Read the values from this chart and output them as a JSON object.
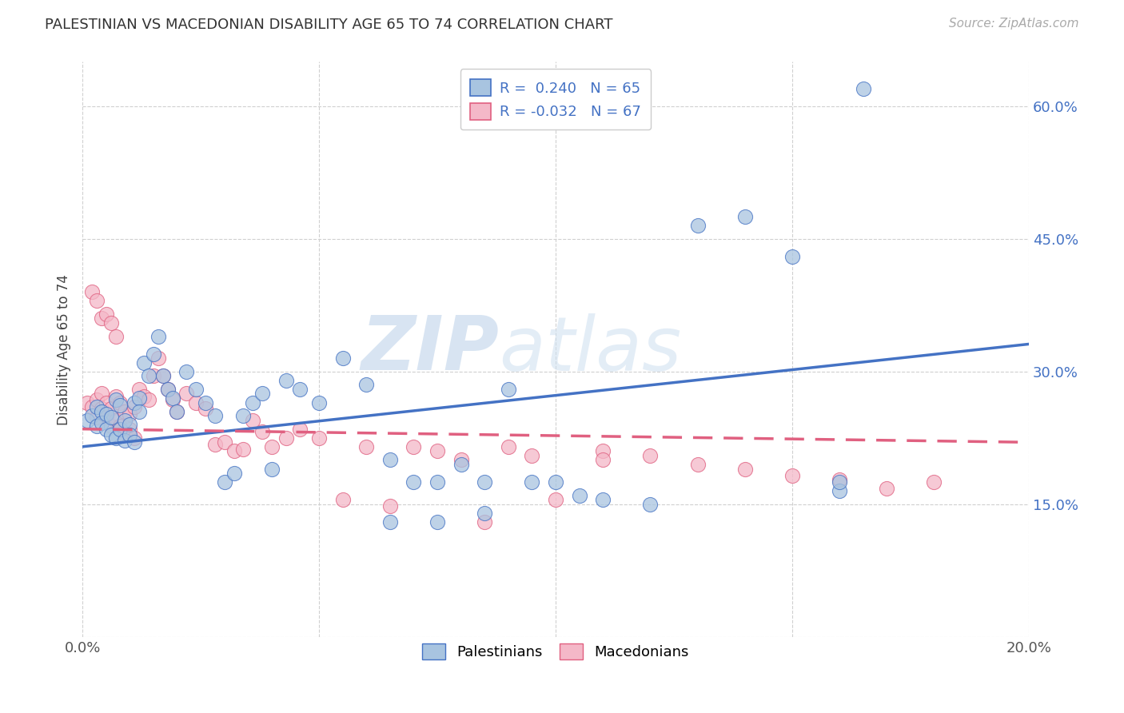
{
  "title": "PALESTINIAN VS MACEDONIAN DISABILITY AGE 65 TO 74 CORRELATION CHART",
  "source": "Source: ZipAtlas.com",
  "ylabel": "Disability Age 65 to 74",
  "xlim": [
    0.0,
    0.2
  ],
  "ylim": [
    0.0,
    0.65
  ],
  "xtick_positions": [
    0.0,
    0.05,
    0.1,
    0.15,
    0.2
  ],
  "xticklabels": [
    "0.0%",
    "",
    "",
    "",
    "20.0%"
  ],
  "ytick_positions": [
    0.0,
    0.15,
    0.3,
    0.45,
    0.6
  ],
  "yticklabels": [
    "",
    "15.0%",
    "30.0%",
    "45.0%",
    "60.0%"
  ],
  "palestinian_R": 0.24,
  "palestinian_N": 65,
  "macedonian_R": -0.032,
  "macedonian_N": 67,
  "pal_fill": "#a8c4e0",
  "pal_edge": "#4472c4",
  "mac_fill": "#f4b8c8",
  "mac_edge": "#e06080",
  "trendline_pal": "#4472c4",
  "trendline_mac": "#e06080",
  "grid_color": "#d0d0d0",
  "bg_color": "#ffffff",
  "watermark_zip": "ZIP",
  "watermark_atlas": "atlas",
  "title_fontsize": 13,
  "tick_fontsize": 13,
  "legend_fontsize": 13,
  "pal_x": [
    0.001,
    0.002,
    0.003,
    0.003,
    0.004,
    0.004,
    0.005,
    0.005,
    0.006,
    0.006,
    0.007,
    0.007,
    0.008,
    0.008,
    0.009,
    0.009,
    0.01,
    0.01,
    0.011,
    0.011,
    0.012,
    0.012,
    0.013,
    0.014,
    0.015,
    0.016,
    0.017,
    0.018,
    0.019,
    0.02,
    0.022,
    0.024,
    0.026,
    0.028,
    0.03,
    0.032,
    0.034,
    0.036,
    0.038,
    0.04,
    0.043,
    0.046,
    0.05,
    0.055,
    0.06,
    0.065,
    0.07,
    0.075,
    0.08,
    0.085,
    0.09,
    0.095,
    0.1,
    0.105,
    0.11,
    0.12,
    0.13,
    0.14,
    0.15,
    0.16,
    0.065,
    0.075,
    0.085,
    0.16,
    0.165
  ],
  "pal_y": [
    0.245,
    0.25,
    0.26,
    0.238,
    0.255,
    0.242,
    0.252,
    0.235,
    0.248,
    0.228,
    0.268,
    0.225,
    0.262,
    0.235,
    0.245,
    0.222,
    0.24,
    0.228,
    0.265,
    0.22,
    0.27,
    0.255,
    0.31,
    0.295,
    0.32,
    0.34,
    0.295,
    0.28,
    0.27,
    0.255,
    0.3,
    0.28,
    0.265,
    0.25,
    0.175,
    0.185,
    0.25,
    0.265,
    0.275,
    0.19,
    0.29,
    0.28,
    0.265,
    0.315,
    0.285,
    0.2,
    0.175,
    0.175,
    0.195,
    0.175,
    0.28,
    0.175,
    0.175,
    0.16,
    0.155,
    0.15,
    0.465,
    0.475,
    0.43,
    0.165,
    0.13,
    0.13,
    0.14,
    0.175,
    0.62
  ],
  "mac_x": [
    0.001,
    0.002,
    0.003,
    0.003,
    0.004,
    0.004,
    0.005,
    0.005,
    0.006,
    0.006,
    0.007,
    0.007,
    0.008,
    0.008,
    0.009,
    0.009,
    0.01,
    0.01,
    0.011,
    0.011,
    0.012,
    0.013,
    0.014,
    0.015,
    0.016,
    0.017,
    0.018,
    0.019,
    0.02,
    0.022,
    0.024,
    0.026,
    0.028,
    0.03,
    0.032,
    0.034,
    0.036,
    0.038,
    0.04,
    0.043,
    0.046,
    0.05,
    0.055,
    0.06,
    0.065,
    0.07,
    0.075,
    0.08,
    0.085,
    0.09,
    0.095,
    0.1,
    0.11,
    0.12,
    0.13,
    0.14,
    0.15,
    0.16,
    0.17,
    0.18,
    0.002,
    0.003,
    0.004,
    0.005,
    0.006,
    0.007,
    0.11
  ],
  "mac_y": [
    0.265,
    0.26,
    0.268,
    0.248,
    0.275,
    0.258,
    0.265,
    0.248,
    0.258,
    0.238,
    0.272,
    0.245,
    0.265,
    0.238,
    0.255,
    0.228,
    0.252,
    0.235,
    0.26,
    0.225,
    0.28,
    0.272,
    0.268,
    0.295,
    0.315,
    0.295,
    0.28,
    0.268,
    0.255,
    0.275,
    0.265,
    0.258,
    0.218,
    0.22,
    0.21,
    0.212,
    0.245,
    0.232,
    0.215,
    0.225,
    0.235,
    0.225,
    0.155,
    0.215,
    0.148,
    0.215,
    0.21,
    0.2,
    0.13,
    0.215,
    0.205,
    0.155,
    0.21,
    0.205,
    0.195,
    0.19,
    0.182,
    0.178,
    0.168,
    0.175,
    0.39,
    0.38,
    0.36,
    0.365,
    0.355,
    0.34,
    0.2
  ]
}
